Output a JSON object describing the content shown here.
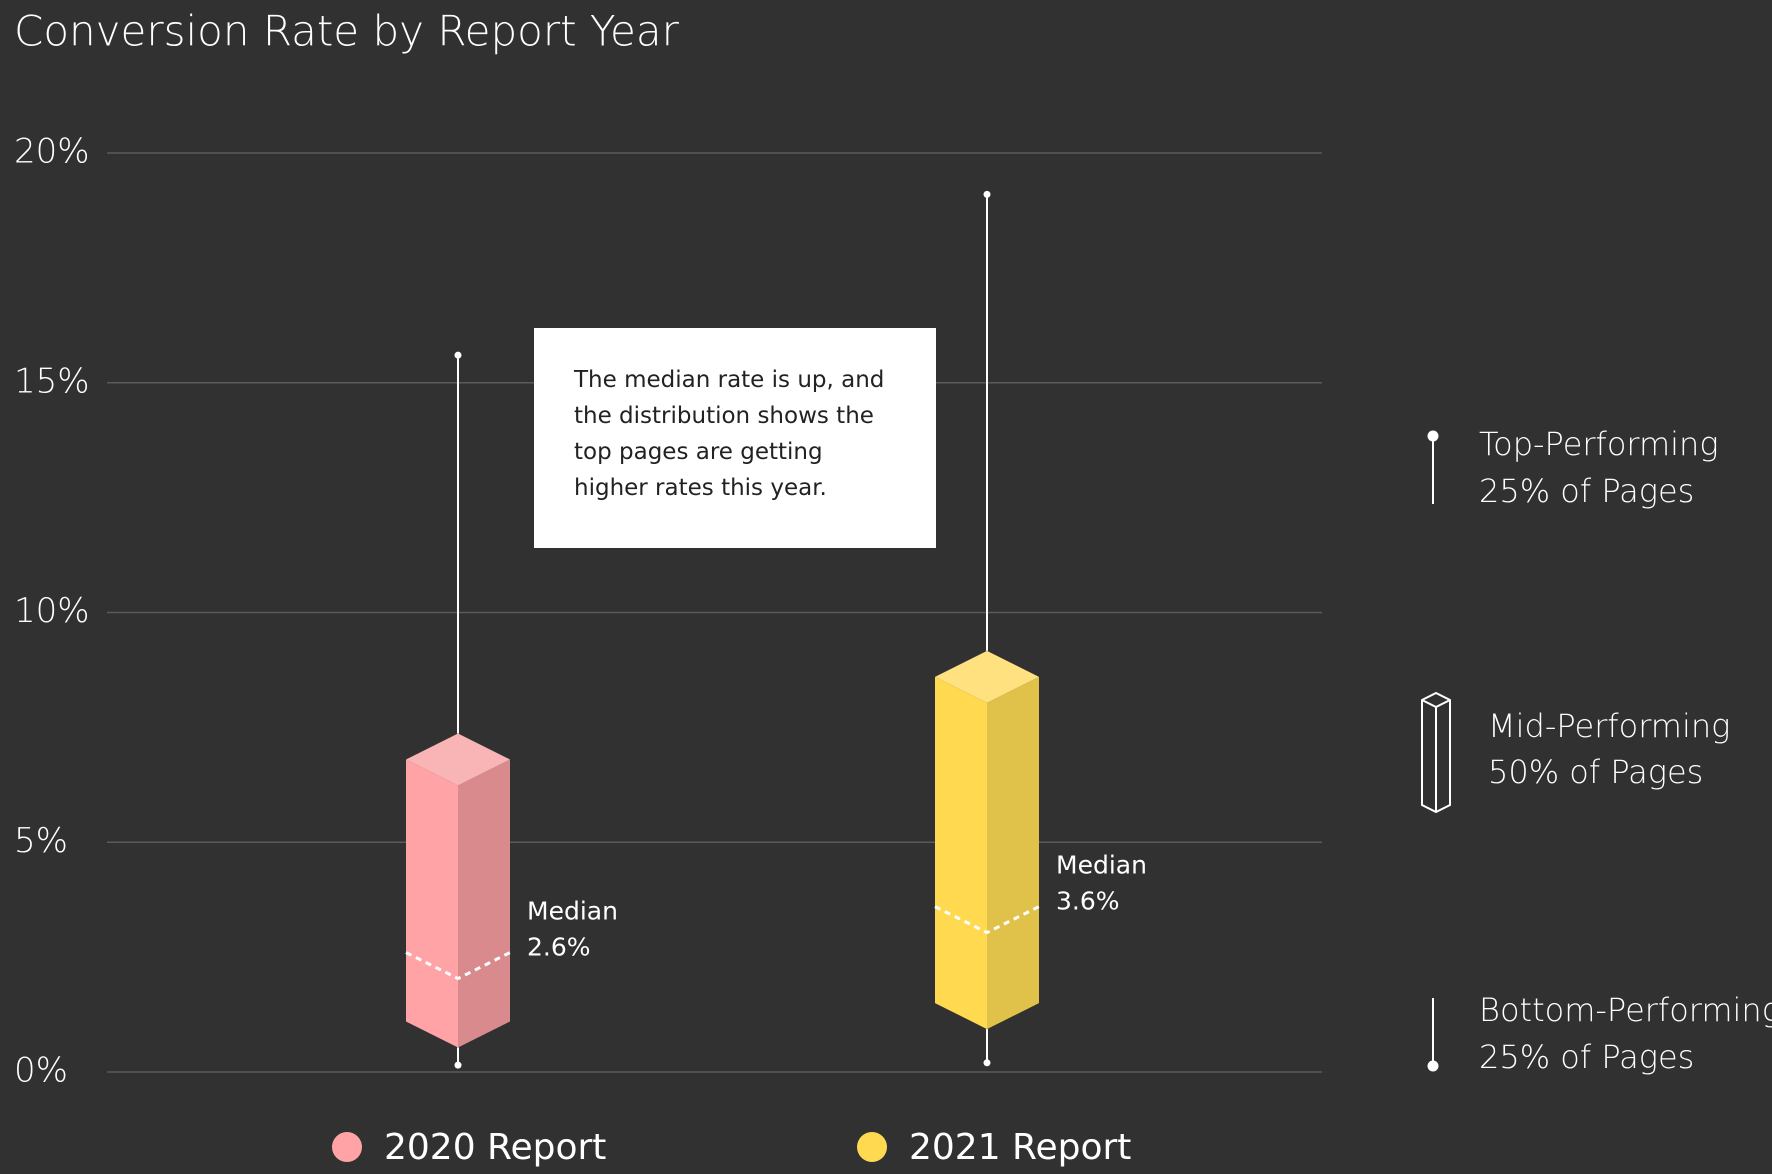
{
  "chart_data": {
    "type": "box",
    "title": "Conversion Rate by Report Year",
    "ylim": [
      0,
      20
    ],
    "yticks": [
      {
        "value": 0,
        "label": "0%"
      },
      {
        "value": 5,
        "label": "5%"
      },
      {
        "value": 10,
        "label": "10%"
      },
      {
        "value": 15,
        "label": "15%"
      },
      {
        "value": 20,
        "label": "20%"
      }
    ],
    "grid": true,
    "median_text": "Median",
    "series": [
      {
        "name": "2020 Report",
        "color": "#ffa3a6",
        "side_color": "#d88a8d",
        "top_color": "#f9b4b6",
        "min": 0.15,
        "q1": 1.1,
        "median": 2.6,
        "median_label": "2.6%",
        "q3": 6.8,
        "max": 15.6
      },
      {
        "name": "2021 Report",
        "color": "#ffd94f",
        "side_color": "#e0c24a",
        "top_color": "#ffe27f",
        "min": 0.2,
        "q1": 1.5,
        "median": 3.6,
        "median_label": "3.6%",
        "q3": 8.6,
        "max": 19.1
      }
    ],
    "annotation": "The median rate is up, and the distribution shows the top pages are getting higher rates this year.",
    "key": [
      {
        "title": "Top-Performing",
        "subtitle": "25% of Pages"
      },
      {
        "title": "Mid-Performing",
        "subtitle": "50% of Pages"
      },
      {
        "title": "Bottom-Performing",
        "subtitle": "25% of Pages"
      }
    ]
  }
}
